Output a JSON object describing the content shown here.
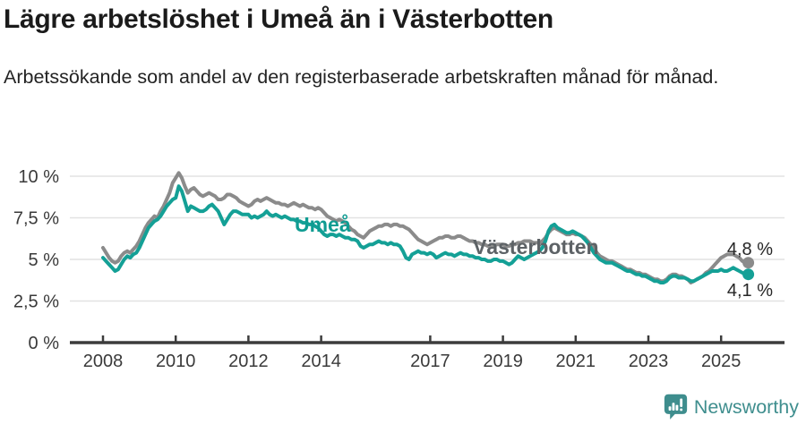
{
  "header": {
    "title": "Lägre arbetslöshet i Umeå än i Västerbotten",
    "subtitle": "Arbetssökande som andel av den registerbaserade arbetskraften månad för månad."
  },
  "chart_data": {
    "type": "line",
    "title": "Lägre arbetslöshet i Umeå än i Västerbotten",
    "subtitle": "Arbetssökande som andel av den registerbaserade arbetskraften månad för månad.",
    "x_unit": "month",
    "x_start": {
      "year": 2008,
      "month": 1
    },
    "x_end": {
      "year": 2025,
      "month": 10
    },
    "x_tick_years": [
      2008,
      2010,
      2012,
      2014,
      2017,
      2019,
      2021,
      2023,
      2025
    ],
    "x_tick_labels": [
      "2008",
      "2010",
      "2012",
      "2014",
      "2017",
      "2019",
      "2021",
      "2023",
      "2025"
    ],
    "y_ticks": [
      0,
      2.5,
      5,
      7.5,
      10
    ],
    "y_tick_labels": [
      "0 %",
      "2,5 %",
      "5 %",
      "7,5 %",
      "10 %"
    ],
    "ylim": [
      0,
      10.5
    ],
    "grid": "horizontal",
    "legend_position": "inline-labels",
    "series": [
      {
        "name": "Västerbotten",
        "color": "#8b8b8b",
        "label_color": "#5d6266",
        "end_value": 4.8,
        "end_label": "4,8 %",
        "values": [
          5.7,
          5.4,
          5.1,
          4.9,
          4.8,
          4.9,
          5.2,
          5.4,
          5.5,
          5.4,
          5.6,
          5.8,
          6.1,
          6.5,
          6.9,
          7.2,
          7.4,
          7.6,
          7.5,
          7.9,
          8.2,
          8.6,
          9.0,
          9.6,
          9.9,
          10.2,
          9.9,
          9.4,
          9.0,
          9.2,
          9.3,
          9.1,
          8.9,
          8.8,
          8.9,
          9.0,
          8.9,
          8.8,
          8.6,
          8.6,
          8.7,
          8.9,
          8.9,
          8.8,
          8.7,
          8.5,
          8.4,
          8.3,
          8.2,
          8.3,
          8.5,
          8.6,
          8.5,
          8.6,
          8.7,
          8.6,
          8.5,
          8.4,
          8.4,
          8.3,
          8.3,
          8.2,
          8.3,
          8.4,
          8.3,
          8.2,
          8.3,
          8.2,
          8.1,
          8.1,
          8.0,
          8.1,
          8.0,
          7.8,
          7.6,
          7.5,
          7.4,
          7.3,
          7.4,
          7.3,
          7.2,
          7.0,
          6.8,
          6.7,
          6.5,
          6.4,
          6.3,
          6.5,
          6.7,
          6.8,
          6.9,
          7.0,
          7.0,
          7.1,
          7.1,
          7.0,
          7.1,
          7.1,
          7.0,
          7.0,
          6.9,
          6.8,
          6.6,
          6.4,
          6.2,
          6.1,
          6.0,
          5.9,
          6.0,
          6.1,
          6.2,
          6.3,
          6.3,
          6.4,
          6.4,
          6.3,
          6.3,
          6.4,
          6.4,
          6.3,
          6.2,
          6.1,
          6.1,
          6.0,
          6.0,
          5.9,
          5.9,
          5.8,
          5.8,
          5.8,
          5.9,
          5.9,
          5.9,
          5.8,
          5.8,
          5.9,
          5.9,
          6.0,
          6.0,
          6.1,
          6.1,
          6.1,
          6.0,
          6.0,
          6.0,
          6.1,
          6.3,
          6.6,
          6.8,
          6.9,
          6.8,
          6.7,
          6.6,
          6.5,
          6.5,
          6.6,
          6.5,
          6.5,
          6.4,
          6.3,
          6.1,
          5.9,
          5.7,
          5.4,
          5.2,
          5.1,
          5.0,
          4.9,
          4.9,
          4.8,
          4.7,
          4.6,
          4.5,
          4.4,
          4.4,
          4.3,
          4.2,
          4.2,
          4.1,
          4.1,
          4.0,
          3.9,
          3.8,
          3.8,
          3.7,
          3.7,
          3.8,
          4.0,
          4.1,
          4.1,
          4.0,
          4.0,
          3.9,
          3.8,
          3.6,
          3.7,
          3.8,
          3.9,
          4.0,
          4.2,
          4.3,
          4.5,
          4.7,
          4.9,
          5.1,
          5.2,
          5.3,
          5.3,
          5.3,
          5.2,
          5.1,
          4.9,
          4.8,
          4.8
        ]
      },
      {
        "name": "Umeå",
        "color": "#14a096",
        "label_color": "#0f9c92",
        "end_value": 4.1,
        "end_label": "4,1 %",
        "values": [
          5.1,
          4.9,
          4.7,
          4.5,
          4.3,
          4.4,
          4.7,
          5.0,
          5.2,
          5.1,
          5.3,
          5.4,
          5.7,
          6.1,
          6.5,
          6.9,
          7.1,
          7.3,
          7.4,
          7.6,
          7.9,
          8.2,
          8.4,
          8.6,
          8.7,
          9.4,
          9.1,
          8.5,
          7.9,
          8.2,
          8.1,
          8.0,
          7.9,
          7.9,
          8.0,
          8.2,
          8.3,
          8.1,
          7.9,
          7.5,
          7.1,
          7.4,
          7.7,
          7.9,
          7.9,
          7.8,
          7.7,
          7.7,
          7.7,
          7.5,
          7.6,
          7.5,
          7.6,
          7.7,
          7.9,
          7.7,
          7.6,
          7.7,
          7.6,
          7.5,
          7.6,
          7.5,
          7.4,
          7.4,
          7.3,
          7.3,
          7.2,
          7.2,
          7.1,
          7.1,
          7.0,
          6.9,
          6.7,
          6.5,
          6.4,
          6.5,
          6.5,
          6.4,
          6.5,
          6.4,
          6.3,
          6.3,
          6.2,
          6.2,
          6.1,
          5.8,
          5.7,
          5.8,
          5.9,
          5.9,
          6.0,
          6.1,
          6.0,
          6.0,
          5.9,
          6.0,
          5.9,
          5.9,
          5.8,
          5.5,
          5.1,
          5.0,
          5.3,
          5.4,
          5.5,
          5.4,
          5.4,
          5.3,
          5.4,
          5.3,
          5.1,
          5.2,
          5.3,
          5.4,
          5.3,
          5.3,
          5.2,
          5.3,
          5.4,
          5.3,
          5.3,
          5.2,
          5.2,
          5.1,
          5.1,
          5.0,
          5.0,
          4.9,
          4.9,
          5.0,
          5.0,
          4.9,
          4.9,
          4.8,
          4.7,
          4.8,
          5.0,
          5.2,
          5.1,
          5.0,
          5.1,
          5.2,
          5.3,
          5.4,
          5.5,
          5.7,
          6.1,
          6.7,
          7.0,
          7.1,
          6.9,
          6.8,
          6.7,
          6.6,
          6.6,
          6.7,
          6.6,
          6.5,
          6.4,
          6.2,
          6.0,
          5.7,
          5.4,
          5.2,
          5.0,
          4.9,
          4.8,
          4.8,
          4.8,
          4.7,
          4.6,
          4.5,
          4.4,
          4.3,
          4.3,
          4.2,
          4.1,
          4.1,
          4.0,
          4.0,
          3.9,
          3.8,
          3.7,
          3.7,
          3.6,
          3.6,
          3.7,
          3.9,
          4.0,
          4.0,
          3.9,
          3.9,
          3.9,
          3.8,
          3.7,
          3.7,
          3.8,
          3.9,
          4.0,
          4.1,
          4.2,
          4.3,
          4.3,
          4.3,
          4.4,
          4.3,
          4.3,
          4.4,
          4.5,
          4.4,
          4.3,
          4.2,
          4.1,
          4.1
        ]
      }
    ]
  },
  "branding": {
    "logo_text": "Newsworthy",
    "logo_color": "#3e8d8d"
  },
  "colors": {
    "background": "#ffffff",
    "grid": "#e2e2e2",
    "axis": "#3c3c3c",
    "axis_text": "#3a3a3a",
    "annotation_text": "#262626"
  }
}
